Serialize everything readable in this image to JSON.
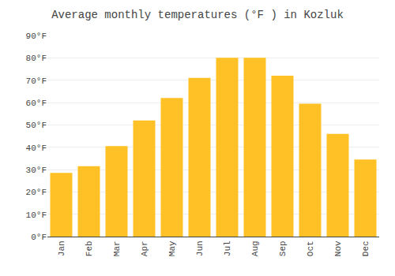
{
  "chart_data": {
    "type": "bar",
    "title": "Average monthly temperatures (°F ) in Kozluk",
    "categories": [
      "Jan",
      "Feb",
      "Mar",
      "Apr",
      "May",
      "Jun",
      "Jul",
      "Aug",
      "Sep",
      "Oct",
      "Nov",
      "Dec"
    ],
    "values": [
      28.5,
      31.5,
      40.5,
      52,
      62,
      71,
      80,
      80,
      72,
      59.5,
      46,
      34.5
    ],
    "color": "#FFC125",
    "ylim": [
      0,
      90
    ],
    "yticks": [
      {
        "value": 0,
        "label": "0°F"
      },
      {
        "value": 10,
        "label": "10°F"
      },
      {
        "value": 20,
        "label": "20°F"
      },
      {
        "value": 30,
        "label": "30°F"
      },
      {
        "value": 40,
        "label": "40°F"
      },
      {
        "value": 50,
        "label": "50°F"
      },
      {
        "value": 60,
        "label": "60°F"
      },
      {
        "value": 70,
        "label": "70°F"
      },
      {
        "value": 80,
        "label": "80°F"
      },
      {
        "value": 90,
        "label": "90°F"
      }
    ],
    "grid": true
  }
}
